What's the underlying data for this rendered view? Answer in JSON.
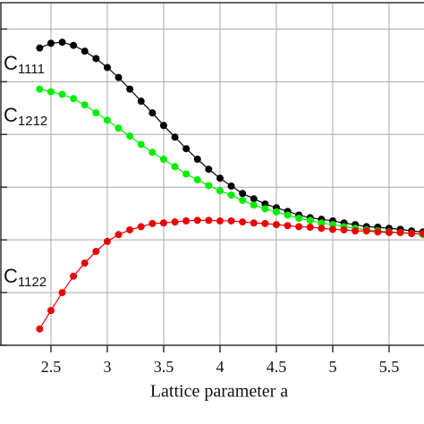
{
  "chart_data": {
    "type": "line",
    "x_label": "Lattice parameter a",
    "x": [
      2.4,
      2.5,
      2.6,
      2.7,
      2.8,
      2.9,
      3.0,
      3.1,
      3.2,
      3.3,
      3.4,
      3.5,
      3.6,
      3.7,
      3.8,
      3.9,
      4.0,
      4.1,
      4.2,
      4.3,
      4.4,
      4.5,
      4.6,
      4.7,
      4.8,
      4.9,
      5.0,
      5.1,
      5.2,
      5.3,
      5.4,
      5.5,
      5.6,
      5.7,
      5.8
    ],
    "series": [
      {
        "name_main": "C",
        "name_sub": "1111",
        "color": "#000000",
        "values": [
          5.64,
          5.73,
          5.75,
          5.69,
          5.58,
          5.44,
          5.27,
          5.08,
          4.86,
          4.63,
          4.41,
          4.17,
          3.95,
          3.73,
          3.53,
          3.34,
          3.17,
          3.02,
          2.88,
          2.78,
          2.68,
          2.61,
          2.54,
          2.47,
          2.42,
          2.39,
          2.36,
          2.32,
          2.29,
          2.25,
          2.24,
          2.22,
          2.2,
          2.17,
          2.15
        ]
      },
      {
        "name_main": "C",
        "name_sub": "1212",
        "color": "#00ee00",
        "values": [
          4.86,
          4.81,
          4.76,
          4.68,
          4.56,
          4.41,
          4.27,
          4.12,
          3.97,
          3.81,
          3.66,
          3.53,
          3.39,
          3.25,
          3.14,
          3.03,
          2.93,
          2.85,
          2.75,
          2.66,
          2.59,
          2.53,
          2.47,
          2.41,
          2.37,
          2.32,
          2.29,
          2.25,
          2.22,
          2.19,
          2.17,
          2.15,
          2.14,
          2.12,
          2.1
        ]
      },
      {
        "name_main": "C",
        "name_sub": "1122",
        "color": "#ee0000",
        "values": [
          0.31,
          0.66,
          1.0,
          1.31,
          1.56,
          1.78,
          1.97,
          2.1,
          2.19,
          2.25,
          2.31,
          2.32,
          2.34,
          2.36,
          2.37,
          2.37,
          2.36,
          2.36,
          2.34,
          2.32,
          2.31,
          2.29,
          2.27,
          2.25,
          2.24,
          2.22,
          2.2,
          2.19,
          2.17,
          2.17,
          2.15,
          2.14,
          2.14,
          2.12,
          2.12
        ]
      }
    ],
    "xlim": [
      2.048,
      5.81
    ],
    "xticks": [
      2.5,
      3,
      3.5,
      4,
      4.5,
      5,
      5.5
    ],
    "ylim": [
      0,
      6.5
    ],
    "yticks": [
      0,
      1,
      2,
      3,
      4,
      5,
      6
    ],
    "grid": true
  }
}
